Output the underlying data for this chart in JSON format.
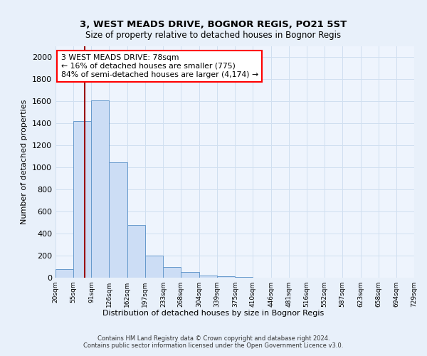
{
  "title1": "3, WEST MEADS DRIVE, BOGNOR REGIS, PO21 5ST",
  "title2": "Size of property relative to detached houses in Bognor Regis",
  "xlabel": "Distribution of detached houses by size in Bognor Regis",
  "ylabel": "Number of detached properties",
  "bin_edges": [
    20,
    55,
    91,
    126,
    162,
    197,
    233,
    268,
    304,
    339,
    375,
    410,
    446,
    481,
    516,
    552,
    587,
    623,
    658,
    694,
    729
  ],
  "bar_heights": [
    75,
    1420,
    1610,
    1050,
    480,
    200,
    100,
    50,
    20,
    10,
    5,
    3,
    2,
    1,
    1,
    0,
    0,
    0,
    0,
    0
  ],
  "bar_color": "#ccddf5",
  "bar_edge_color": "#6699cc",
  "property_size": 78,
  "annotation_line1": "3 WEST MEADS DRIVE: 78sqm",
  "annotation_line2": "← 16% of detached houses are smaller (775)",
  "annotation_line3": "84% of semi-detached houses are larger (4,174) →",
  "annotation_box_color": "white",
  "annotation_box_edge_color": "red",
  "vline_color": "#990000",
  "ylim": [
    0,
    2100
  ],
  "yticks": [
    0,
    200,
    400,
    600,
    800,
    1000,
    1200,
    1400,
    1600,
    1800,
    2000
  ],
  "footer1": "Contains HM Land Registry data © Crown copyright and database right 2024.",
  "footer2": "Contains public sector information licensed under the Open Government Licence v3.0.",
  "bg_color": "#e8f0fa",
  "plot_bg_color": "#eef4fd",
  "grid_color": "#d0dff0"
}
